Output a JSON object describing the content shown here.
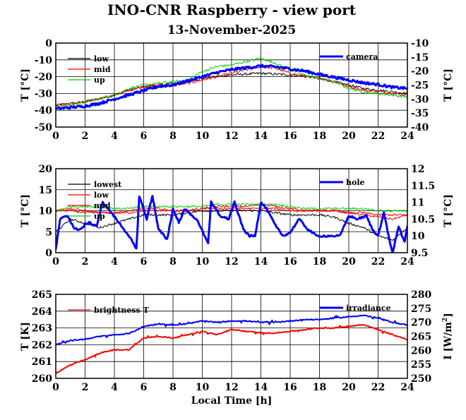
{
  "page": {
    "title": "INO-CNR Raspberry - view port",
    "subtitle": "13-November-2025"
  },
  "colors": {
    "low": "#000000",
    "mid": "#ff0000",
    "up": "#00cc00",
    "camera": "#0000ff",
    "lowest": "#000000",
    "hole": "#0000ff",
    "brightness": "#ff0000",
    "irradiance": "#0000ff"
  },
  "chart_data": [
    {
      "type": "line",
      "panel": "top",
      "xlabel": "",
      "ylabel": "T [°C]",
      "ylabel_right": "T [°C]",
      "xlim": [
        0,
        24
      ],
      "ylim": [
        -50,
        0
      ],
      "ylim_right": [
        -40,
        -10
      ],
      "xticks": [
        "0",
        "2",
        "4",
        "6",
        "8",
        "10",
        "12",
        "14",
        "16",
        "18",
        "20",
        "22",
        "24"
      ],
      "yticks": [
        "0",
        "-10",
        "-20",
        "-30",
        "-40",
        "-50"
      ],
      "yticks_right": [
        "-10",
        "-15",
        "-20",
        "-25",
        "-30",
        "-35",
        "-40"
      ],
      "grid": true,
      "legend_left": "top-left",
      "legend_right": "top-right",
      "x": [
        0,
        1,
        2,
        3,
        4,
        5,
        6,
        7,
        8,
        9,
        10,
        11,
        12,
        13,
        14,
        15,
        16,
        17,
        18,
        19,
        20,
        21,
        22,
        23,
        24
      ],
      "series": [
        {
          "name": "low",
          "key": "low",
          "axis": "left",
          "width": 1,
          "values": [
            -37,
            -36,
            -35,
            -33,
            -31,
            -28,
            -26,
            -25,
            -24,
            -23,
            -21,
            -20,
            -19,
            -18.5,
            -18,
            -18.5,
            -19,
            -19.5,
            -21,
            -23,
            -25,
            -27,
            -28,
            -29,
            -30
          ]
        },
        {
          "name": "mid",
          "key": "mid",
          "axis": "left",
          "width": 1,
          "values": [
            -37,
            -36,
            -35,
            -33,
            -31,
            -28,
            -26,
            -25,
            -25,
            -24,
            -22,
            -20,
            -18,
            -16,
            -14,
            -15,
            -18,
            -20,
            -21,
            -23,
            -26,
            -28,
            -29,
            -30,
            -31
          ]
        },
        {
          "name": "up",
          "key": "up",
          "axis": "left",
          "width": 1,
          "values": [
            -38,
            -37,
            -35,
            -33,
            -31,
            -27,
            -25,
            -24,
            -23,
            -22,
            -17,
            -14,
            -13,
            -11,
            -9,
            -12,
            -16,
            -19,
            -21,
            -23,
            -27,
            -29,
            -30,
            -31,
            -32
          ]
        },
        {
          "name": "camera",
          "key": "camera",
          "axis": "right",
          "width": 3,
          "values": [
            -33.5,
            -33,
            -32.5,
            -31.5,
            -30,
            -28.5,
            -27,
            -25.5,
            -25,
            -23.5,
            -22,
            -20.5,
            -19.5,
            -18.8,
            -18.2,
            -18.5,
            -19.2,
            -20,
            -21.2,
            -22.2,
            -23.2,
            -24.2,
            -24.8,
            -25.8,
            -26.2
          ]
        }
      ]
    },
    {
      "type": "line",
      "panel": "middle",
      "xlabel": "",
      "ylabel": "T [°C]",
      "ylabel_right": "T [°C]",
      "xlim": [
        0,
        24
      ],
      "ylim": [
        0,
        20
      ],
      "ylim_right": [
        9.5,
        12
      ],
      "ylim_right_ticks": [
        9.5,
        12
      ],
      "xticks": [
        "0",
        "2",
        "4",
        "6",
        "8",
        "10",
        "12",
        "14",
        "16",
        "18",
        "20",
        "22",
        "24"
      ],
      "yticks": [
        "20",
        "15",
        "10",
        "5",
        "0"
      ],
      "yticks_right": [
        "12",
        "11.5",
        "11",
        "10.5",
        "10",
        "9.5"
      ],
      "grid": true,
      "legend_left": "top-left",
      "legend_right": "top-right",
      "x": [
        0,
        1,
        2,
        3,
        4,
        5,
        6,
        7,
        8,
        9,
        10,
        11,
        12,
        13,
        14,
        15,
        16,
        17,
        18,
        19,
        20,
        21,
        22,
        23,
        24
      ],
      "series": [
        {
          "name": "lowest",
          "key": "lowest",
          "axis": "left",
          "width": 1,
          "values": [
            5,
            8,
            7,
            6,
            7,
            8,
            9,
            9,
            9,
            9.5,
            10,
            10,
            10,
            10,
            10,
            9.5,
            9,
            9,
            9,
            8.5,
            7,
            6,
            4,
            3,
            6
          ]
        },
        {
          "name": "low",
          "key": "mid",
          "axis": "left",
          "width": 1,
          "values": [
            10,
            10.5,
            10,
            9.5,
            9.5,
            10,
            10.5,
            10.5,
            10,
            10,
            10.5,
            11,
            11,
            11,
            11.5,
            11,
            10.5,
            10,
            10,
            10,
            9.5,
            9,
            8.5,
            8,
            9
          ]
        },
        {
          "name": "mid",
          "key": "mid",
          "axis": "left",
          "width": 1,
          "values": [
            10,
            10,
            9.5,
            9.5,
            9.5,
            9.5,
            10,
            10,
            10,
            10,
            10.5,
            10.5,
            10.5,
            10.5,
            10.5,
            10.5,
            10,
            10,
            10,
            10,
            9.5,
            9.5,
            9,
            9,
            9
          ]
        },
        {
          "name": "up",
          "key": "up",
          "axis": "left",
          "width": 1,
          "values": [
            10,
            11,
            11,
            11,
            10.5,
            10.5,
            11,
            11,
            11,
            11,
            11,
            11.5,
            11.5,
            11.5,
            11.5,
            11.5,
            11,
            10.5,
            10.5,
            10.5,
            10.5,
            10.5,
            10,
            10,
            10
          ]
        }
      ],
      "hole_series": {
        "name": "hole",
        "key": "hole",
        "axis": "right",
        "width": 3,
        "points": [
          [
            0,
            9.6
          ],
          [
            0.3,
            10.5
          ],
          [
            0.8,
            10.6
          ],
          [
            1.3,
            10.2
          ],
          [
            1.7,
            10.2
          ],
          [
            2.2,
            10.4
          ],
          [
            2.8,
            10.3
          ],
          [
            3.2,
            11.0
          ],
          [
            3.6,
            10.8
          ],
          [
            4.3,
            10.4
          ],
          [
            5.0,
            10.0
          ],
          [
            5.5,
            9.6
          ],
          [
            5.7,
            11.2
          ],
          [
            6.2,
            10.5
          ],
          [
            6.6,
            11.2
          ],
          [
            7.0,
            10.2
          ],
          [
            7.6,
            9.9
          ],
          [
            8.0,
            10.8
          ],
          [
            8.4,
            10.4
          ],
          [
            8.8,
            10.8
          ],
          [
            9.6,
            10.5
          ],
          [
            10.4,
            9.8
          ],
          [
            10.6,
            11.0
          ],
          [
            11.2,
            10.6
          ],
          [
            11.8,
            10.5
          ],
          [
            12.2,
            11.0
          ],
          [
            12.8,
            10.2
          ],
          [
            13.2,
            10.0
          ],
          [
            13.6,
            10.0
          ],
          [
            14.0,
            11.0
          ],
          [
            14.4,
            10.8
          ],
          [
            15.0,
            10.3
          ],
          [
            15.5,
            10.0
          ],
          [
            16.0,
            10.1
          ],
          [
            16.6,
            10.5
          ],
          [
            17.2,
            10.2
          ],
          [
            17.8,
            10.0
          ],
          [
            18.6,
            10.0
          ],
          [
            19.4,
            10.0
          ],
          [
            20.0,
            10.6
          ],
          [
            20.6,
            10.5
          ],
          [
            21.2,
            10.6
          ],
          [
            21.6,
            10.2
          ],
          [
            22.0,
            10.0
          ],
          [
            22.4,
            10.7
          ],
          [
            22.8,
            9.8
          ],
          [
            23.0,
            9.5
          ],
          [
            23.4,
            10.3
          ],
          [
            23.8,
            9.8
          ],
          [
            24.0,
            10.3
          ]
        ]
      }
    },
    {
      "type": "line",
      "panel": "bottom",
      "xlabel": "Local Time [h]",
      "ylabel": "T [K]",
      "ylabel_right": "I [W/m",
      "ylabel_right_sup": "2",
      "ylabel_right_end": "]",
      "xlim": [
        0,
        24
      ],
      "ylim": [
        260,
        265
      ],
      "ylim_right": [
        250,
        280
      ],
      "xticks": [
        "0",
        "2",
        "4",
        "6",
        "8",
        "10",
        "12",
        "14",
        "16",
        "18",
        "20",
        "22",
        "24"
      ],
      "yticks": [
        "265",
        "264",
        "263",
        "262",
        "261",
        "260"
      ],
      "yticks_right": [
        "280",
        "275",
        "270",
        "265",
        "260",
        "255",
        "250"
      ],
      "grid": true,
      "legend_left": "top-left",
      "legend_right": "top-right",
      "x": [
        0,
        1,
        2,
        3,
        4,
        5,
        6,
        7,
        8,
        9,
        10,
        11,
        12,
        13,
        14,
        15,
        16,
        17,
        18,
        19,
        20,
        21,
        22,
        23,
        24
      ],
      "series": [
        {
          "name": "brightness T",
          "key": "brightness",
          "axis": "left",
          "width": 2,
          "values": [
            260.3,
            260.8,
            261.1,
            261.5,
            261.7,
            261.7,
            262.4,
            262.5,
            262.4,
            262.6,
            262.8,
            262.6,
            262.9,
            262.8,
            262.7,
            262.7,
            262.8,
            262.9,
            263.0,
            263.0,
            263.1,
            263.2,
            262.9,
            262.6,
            262.3
          ]
        },
        {
          "name": "irradiance",
          "key": "irradiance",
          "axis": "right",
          "width": 2,
          "values": [
            262,
            263.5,
            264,
            265,
            265.5,
            266,
            268.5,
            269.5,
            269,
            269.5,
            270.5,
            270,
            270.5,
            270.5,
            270,
            270,
            270.5,
            271,
            271,
            271.5,
            272,
            272.5,
            271.5,
            270,
            269
          ]
        }
      ]
    }
  ]
}
